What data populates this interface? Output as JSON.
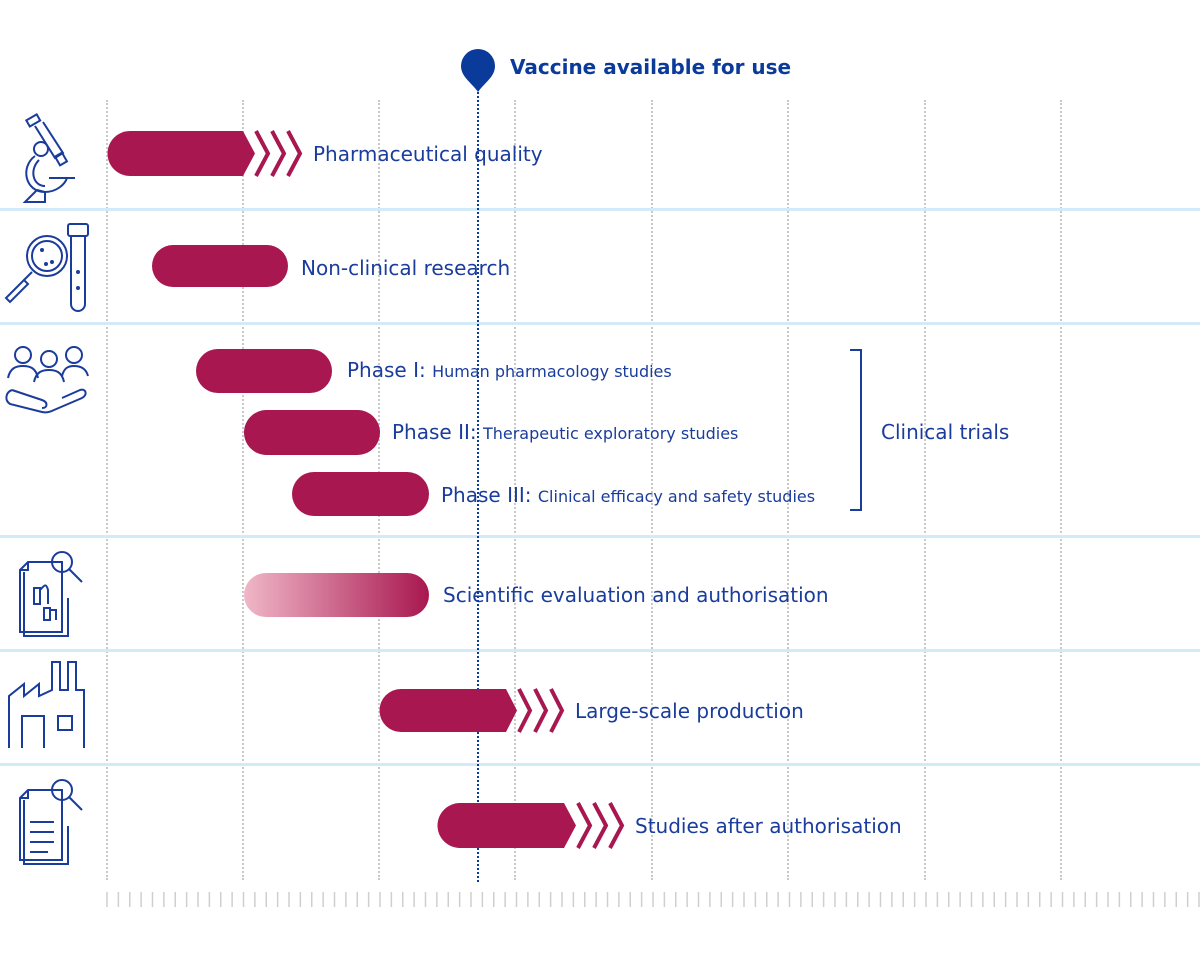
{
  "header": {
    "milestone_label": "Vaccine available for use",
    "milestone_icon": "map-pin-icon"
  },
  "colors": {
    "bar": "#a8174f",
    "text": "#1a3c9c",
    "milestone": "#0a3a9a",
    "separator": "#d3ebf8",
    "bar_gradient_start": "#f0b7c8"
  },
  "rows": [
    {
      "icon": "microscope-icon",
      "label": "Pharmaceutical quality"
    },
    {
      "icon": "magnifier-test-tube-icon",
      "label": "Non-clinical research"
    },
    {
      "icon": "people-hand-icon",
      "phases": [
        {
          "name": "Phase I:",
          "desc": "Human pharmacology studies"
        },
        {
          "name": "Phase II:",
          "desc": "Therapeutic exploratory studies"
        },
        {
          "name": "Phase III:",
          "desc": "Clinical efficacy and safety studies"
        }
      ],
      "group_label": "Clinical trials"
    },
    {
      "icon": "document-review-icon",
      "label": "Scientific evaluation and authorisation"
    },
    {
      "icon": "factory-icon",
      "label": "Large-scale production"
    },
    {
      "icon": "document-search-icon",
      "label": "Studies after authorisation"
    }
  ]
}
